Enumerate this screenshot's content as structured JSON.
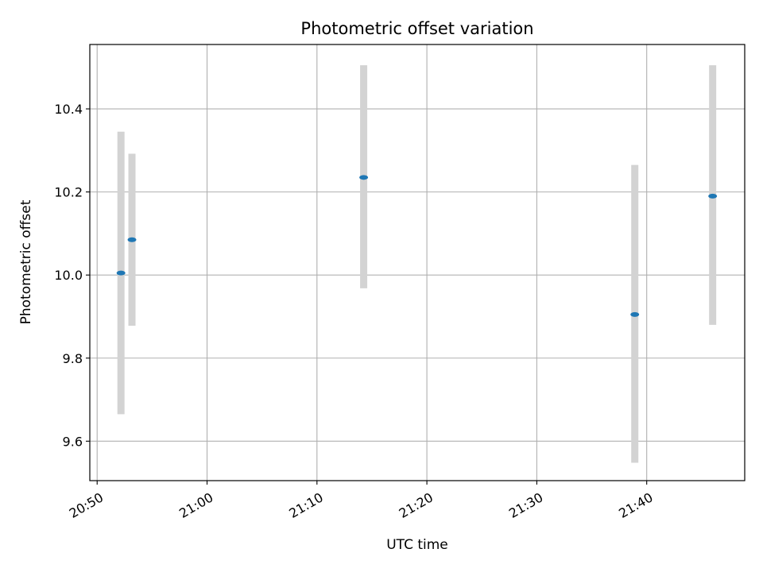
{
  "chart_data": {
    "type": "scatter",
    "title": "Photometric offset variation",
    "xlabel": "UTC time",
    "ylabel": "Photometric offset",
    "x_ticks": [
      "20:50",
      "21:00",
      "21:10",
      "21:20",
      "21:30",
      "21:40"
    ],
    "y_ticks": [
      "9.6",
      "9.8",
      "10.0",
      "10.2",
      "10.4"
    ],
    "y_tick_values": [
      9.6,
      9.8,
      10.0,
      10.2,
      10.4
    ],
    "x_tick_times": [
      "20:50",
      "21:00",
      "21:10",
      "21:20",
      "21:30",
      "21:40"
    ],
    "xlim": [
      "20:49:20",
      "21:48:55"
    ],
    "ylim": [
      9.505,
      10.555
    ],
    "grid": true,
    "colors": {
      "point": "#1f77b4",
      "errorbar": "#d3d3d3",
      "grid": "#b0b0b0"
    },
    "points": [
      {
        "x": "20:52:10",
        "y": 10.005,
        "ymin": 9.665,
        "ymax": 10.345
      },
      {
        "x": "20:53:10",
        "y": 10.085,
        "ymin": 9.878,
        "ymax": 10.292
      },
      {
        "x": "21:14:15",
        "y": 10.235,
        "ymin": 9.968,
        "ymax": 10.505
      },
      {
        "x": "21:38:55",
        "y": 9.905,
        "ymin": 9.548,
        "ymax": 10.265
      },
      {
        "x": "21:46:00",
        "y": 10.19,
        "ymin": 9.88,
        "ymax": 10.505
      }
    ]
  }
}
